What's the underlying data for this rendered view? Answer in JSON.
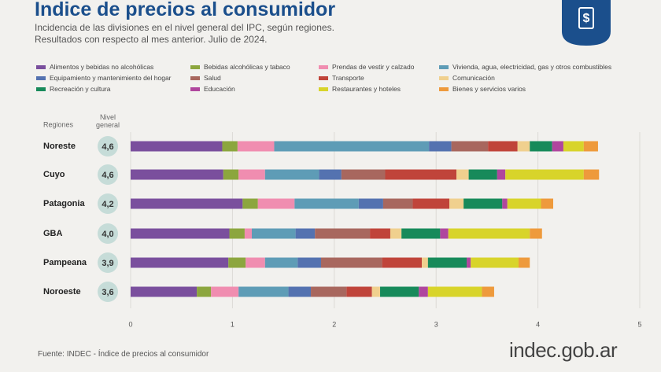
{
  "chart_data": {
    "type": "bar",
    "title": "Indice de precios al consumidor",
    "subtitle": [
      "Incidencia de las divisiones en el nivel general del IPC, según regiones.",
      "Resultados con respecto al mes anterior. Julio de 2024."
    ],
    "category_header": "Regiones",
    "categories": [
      "Noreste",
      "Cuyo",
      "Patagonia",
      "GBA",
      "Pampeana",
      "Noroeste"
    ],
    "general": {
      "name": "Nivel general",
      "values": [
        4.6,
        4.6,
        4.2,
        4.0,
        3.9,
        3.6
      ],
      "value_labels": [
        "4,6",
        "4,6",
        "4,2",
        "4,0",
        "3,9",
        "3,6"
      ]
    },
    "series": [
      {
        "name": "Alimentos y bebidas no alcohólicas",
        "color": "#7a4f9d",
        "values": [
          0.9,
          0.91,
          1.1,
          0.97,
          0.96,
          0.65
        ]
      },
      {
        "name": "Bebidas alcohólicas y tabaco",
        "color": "#8ca63e",
        "values": [
          0.15,
          0.15,
          0.15,
          0.15,
          0.17,
          0.14
        ]
      },
      {
        "name": "Prendas de vestir y calzado",
        "color": "#f08db0",
        "values": [
          0.36,
          0.26,
          0.36,
          0.07,
          0.19,
          0.27
        ]
      },
      {
        "name": "Vivienda, agua, electricidad, gas y otros combustibles",
        "color": "#5e9cb6",
        "values": [
          1.52,
          0.53,
          0.63,
          0.43,
          0.32,
          0.49
        ]
      },
      {
        "name": "Equipamiento y mantenimiento del hogar",
        "color": "#5472b0",
        "values": [
          0.22,
          0.22,
          0.24,
          0.19,
          0.23,
          0.22
        ]
      },
      {
        "name": "Salud",
        "color": "#a8675e",
        "values": [
          0.36,
          0.43,
          0.29,
          0.54,
          0.6,
          0.35
        ]
      },
      {
        "name": "Transporte",
        "color": "#c0443a",
        "values": [
          0.29,
          0.7,
          0.36,
          0.2,
          0.39,
          0.25
        ]
      },
      {
        "name": "Comunicación",
        "color": "#f0d08e",
        "values": [
          0.12,
          0.12,
          0.14,
          0.11,
          0.06,
          0.08
        ]
      },
      {
        "name": "Recreación y cultura",
        "color": "#178a5a",
        "values": [
          0.22,
          0.28,
          0.38,
          0.38,
          0.38,
          0.38
        ]
      },
      {
        "name": "Educación",
        "color": "#b0469e",
        "values": [
          0.11,
          0.08,
          0.05,
          0.08,
          0.04,
          0.09
        ]
      },
      {
        "name": "Restaurantes y hoteles",
        "color": "#d8d42a",
        "values": [
          0.2,
          0.77,
          0.33,
          0.8,
          0.47,
          0.53
        ]
      },
      {
        "name": "Bienes y servicios varios",
        "color": "#ee9a3c",
        "values": [
          0.14,
          0.15,
          0.12,
          0.12,
          0.11,
          0.12
        ]
      }
    ],
    "xlim": [
      0,
      5
    ],
    "xticks": [
      0,
      1,
      2,
      3,
      4,
      5
    ],
    "grid": true,
    "source": "Fuente: INDEC - Índice de precios al consumidor",
    "brand": "indec.gob.ar"
  }
}
